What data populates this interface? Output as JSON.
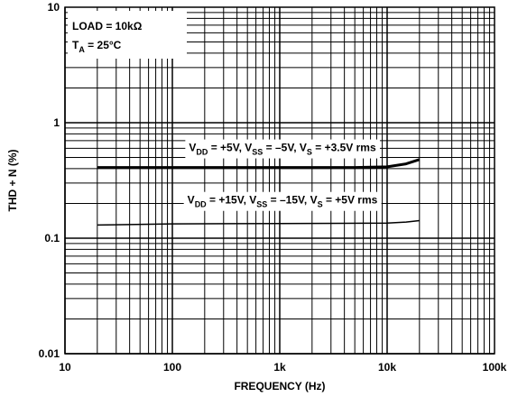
{
  "chart_data": {
    "type": "line",
    "xlabel": "FREQUENCY (Hz)",
    "ylabel": "THD + N (%)",
    "x_scale": "log",
    "y_scale": "log",
    "xlim": [
      10,
      100000
    ],
    "ylim": [
      0.01,
      10
    ],
    "x_ticks": [
      "10",
      "100",
      "1k",
      "10k",
      "100k"
    ],
    "y_ticks": [
      "10",
      "1",
      "0.1",
      "0.01"
    ],
    "grid": true,
    "annotations": [
      {
        "id": "load",
        "main": "LOAD = 10kΩ"
      },
      {
        "id": "ta",
        "main": "T",
        "sub": "A",
        "rest": " = 25°C"
      }
    ],
    "series": [
      {
        "name": "VDD = +5V, VSS = –5V, VS = +3.5V rms",
        "label_parts": [
          {
            "t": "V"
          },
          {
            "t": "DD",
            "sub": true
          },
          {
            "t": " = +5V, V"
          },
          {
            "t": "SS",
            "sub": true
          },
          {
            "t": " = –5V, V"
          },
          {
            "t": "S",
            "sub": true
          },
          {
            "t": " = +3.5V rms"
          }
        ],
        "stroke_width": 3,
        "points": [
          [
            20,
            0.41
          ],
          [
            100,
            0.41
          ],
          [
            1000,
            0.41
          ],
          [
            5000,
            0.41
          ],
          [
            10000,
            0.415
          ],
          [
            15000,
            0.44
          ],
          [
            20000,
            0.48
          ]
        ]
      },
      {
        "name": "VDD = +15V, VSS = –15V, VS = +5V rms",
        "label_parts": [
          {
            "t": "V"
          },
          {
            "t": "DD",
            "sub": true
          },
          {
            "t": " = +15V, V"
          },
          {
            "t": "SS",
            "sub": true
          },
          {
            "t": " = –15V, V"
          },
          {
            "t": "S",
            "sub": true
          },
          {
            "t": " = +5V rms"
          }
        ],
        "stroke_width": 1.5,
        "points": [
          [
            20,
            0.13
          ],
          [
            100,
            0.133
          ],
          [
            1000,
            0.134
          ],
          [
            10000,
            0.135
          ],
          [
            15000,
            0.138
          ],
          [
            20000,
            0.142
          ]
        ]
      }
    ]
  }
}
